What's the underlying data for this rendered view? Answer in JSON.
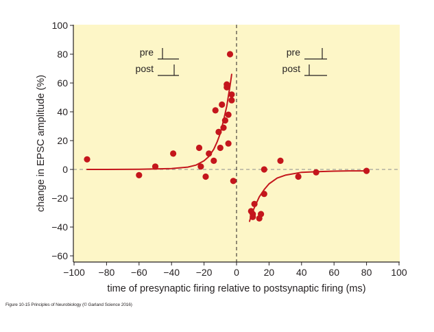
{
  "chart_data": {
    "type": "scatter",
    "title": "",
    "xlabel": "time of presynaptic firing relative to postsynaptic firing (ms)",
    "ylabel": "change in EPSC amplitude (%)",
    "xlim": [
      -100,
      100
    ],
    "ylim": [
      -65,
      100
    ],
    "xticks": [
      -100,
      -80,
      -60,
      -40,
      -20,
      0,
      20,
      40,
      60,
      80,
      100
    ],
    "yticks": [
      -60,
      -40,
      -20,
      0,
      20,
      40,
      60,
      80,
      100
    ],
    "grid": false,
    "background_color": "#fdf6c7",
    "point_color": "#c4161c",
    "curve_color": "#c4161c",
    "reference_line_color": "#8c8c8c",
    "points": [
      {
        "x": -92,
        "y": 7
      },
      {
        "x": -60,
        "y": -4
      },
      {
        "x": -50,
        "y": 2
      },
      {
        "x": -39,
        "y": 11
      },
      {
        "x": -23,
        "y": 15
      },
      {
        "x": -22,
        "y": 2
      },
      {
        "x": -19,
        "y": -5
      },
      {
        "x": -17,
        "y": 11
      },
      {
        "x": -14,
        "y": 6
      },
      {
        "x": -13,
        "y": 41
      },
      {
        "x": -11,
        "y": 26
      },
      {
        "x": -10,
        "y": 15
      },
      {
        "x": -9,
        "y": 45
      },
      {
        "x": -8,
        "y": 29
      },
      {
        "x": -7,
        "y": 34
      },
      {
        "x": -6,
        "y": 59
      },
      {
        "x": -6,
        "y": 57
      },
      {
        "x": -5,
        "y": 38
      },
      {
        "x": -5,
        "y": 18
      },
      {
        "x": -4,
        "y": 80
      },
      {
        "x": -3,
        "y": 52
      },
      {
        "x": -3,
        "y": 48
      },
      {
        "x": -2,
        "y": -8
      },
      {
        "x": 9,
        "y": -29
      },
      {
        "x": 10,
        "y": -31
      },
      {
        "x": 10,
        "y": -33
      },
      {
        "x": 11,
        "y": -24
      },
      {
        "x": 14,
        "y": -34
      },
      {
        "x": 15,
        "y": -31
      },
      {
        "x": 17,
        "y": 0
      },
      {
        "x": 17,
        "y": -17
      },
      {
        "x": 27,
        "y": 6
      },
      {
        "x": 38,
        "y": -5
      },
      {
        "x": 49,
        "y": -2
      },
      {
        "x": 80,
        "y": -1
      }
    ],
    "fit_curves": [
      {
        "name": "",
        "x": [
          -92,
          -80,
          -60,
          -40,
          -30,
          -25,
          -20,
          -17,
          -14,
          -12,
          -10,
          -8,
          -6,
          -5,
          -4,
          -3
        ],
        "y": [
          0,
          0,
          0.1,
          0.6,
          1.6,
          3,
          6,
          9,
          14,
          19,
          25,
          34,
          44,
          51,
          58,
          66
        ]
      },
      {
        "name": "",
        "x": [
          8,
          9,
          10,
          12,
          14,
          17,
          20,
          25,
          30,
          40,
          50,
          60,
          70,
          80
        ],
        "y": [
          -36,
          -32,
          -29,
          -24,
          -19,
          -14,
          -10,
          -6,
          -4,
          -2,
          -1.5,
          -1.2,
          -1,
          -1
        ]
      }
    ]
  },
  "insets": {
    "left": {
      "pre_label": "pre",
      "post_label": "post"
    },
    "right": {
      "pre_label": "pre",
      "post_label": "post"
    }
  },
  "caption": "Figure 10-15 Principles of Neurobiology (© Garland Science 2016)"
}
